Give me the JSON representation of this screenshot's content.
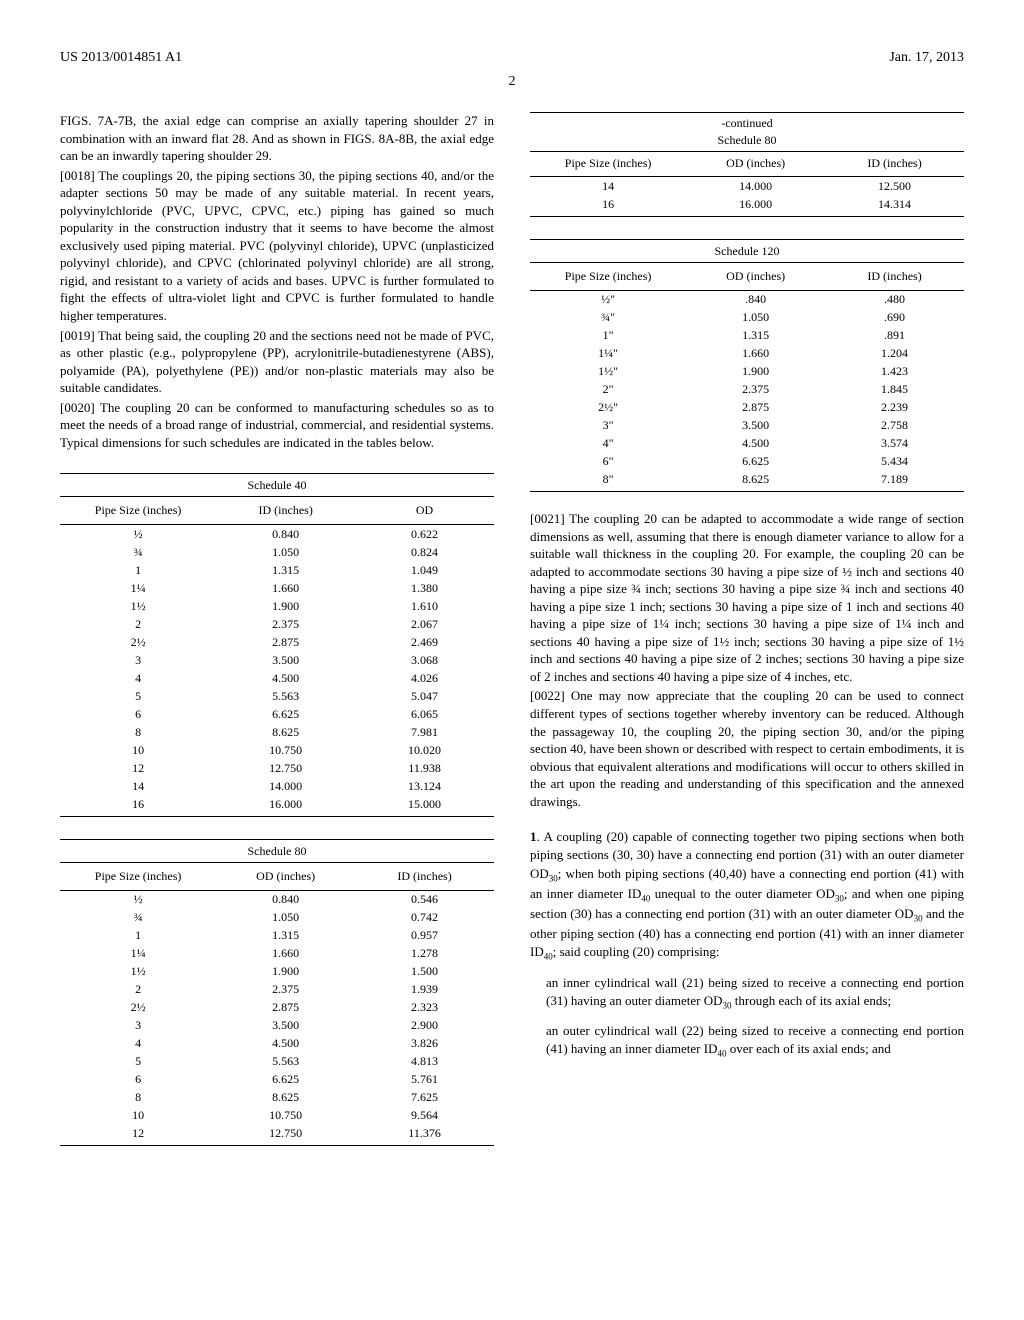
{
  "header": {
    "left": "US 2013/0014851 A1",
    "right": "Jan. 17, 2013"
  },
  "page_number": "2",
  "left_col": {
    "p_intro": "FIGS. 7A-7B, the axial edge can comprise an axially tapering shoulder 27 in combination with an inward flat 28. And as shown in FIGS. 8A-8B, the axial edge can be an inwardly tapering shoulder 29.",
    "p18_num": "[0018]",
    "p18": "   The couplings 20, the piping sections 30, the piping sections 40, and/or the adapter sections 50 may be made of any suitable material. In recent years, polyvinylchloride (PVC, UPVC, CPVC, etc.) piping has gained so much popularity in the construction industry that it seems to have become the almost exclusively used piping material. PVC (polyvinyl chloride), UPVC (unplasticized polyvinyl chloride), and CPVC (chlorinated polyvinyl chloride) are all strong, rigid, and resistant to a variety of acids and bases. UPVC is further formulated to fight the effects of ultra-violet light and CPVC is further formulated to handle higher temperatures.",
    "p19_num": "[0019]",
    "p19": "   That being said, the coupling 20 and the sections need not be made of PVC, as other plastic (e.g., polypropylene (PP), acrylonitrile-butadienestyrene (ABS), polyamide (PA), polyethylene (PE)) and/or non-plastic materials may also be suitable candidates.",
    "p20_num": "[0020]",
    "p20": "   The coupling 20 can be conformed to manufacturing schedules so as to meet the needs of a broad range of industrial, commercial, and residential systems. Typical dimensions for such schedules are indicated in the tables below.",
    "t40_title": "Schedule 40",
    "t40_h1": "Pipe Size (inches)",
    "t40_h2": "ID (inches)",
    "t40_h3": "OD",
    "t40_rows": [
      [
        "½",
        "0.840",
        "0.622"
      ],
      [
        "¾",
        "1.050",
        "0.824"
      ],
      [
        "1",
        "1.315",
        "1.049"
      ],
      [
        "1¼",
        "1.660",
        "1.380"
      ],
      [
        "1½",
        "1.900",
        "1.610"
      ],
      [
        "2",
        "2.375",
        "2.067"
      ],
      [
        "2½",
        "2.875",
        "2.469"
      ],
      [
        "3",
        "3.500",
        "3.068"
      ],
      [
        "4",
        "4.500",
        "4.026"
      ],
      [
        "5",
        "5.563",
        "5.047"
      ],
      [
        "6",
        "6.625",
        "6.065"
      ],
      [
        "8",
        "8.625",
        "7.981"
      ],
      [
        "10",
        "10.750",
        "10.020"
      ],
      [
        "12",
        "12.750",
        "11.938"
      ],
      [
        "14",
        "14.000",
        "13.124"
      ],
      [
        "16",
        "16.000",
        "15.000"
      ]
    ],
    "t80_title": "Schedule 80",
    "t80_h1": "Pipe Size (inches)",
    "t80_h2": "OD (inches)",
    "t80_h3": "ID (inches)",
    "t80_rows": [
      [
        "½",
        "0.840",
        "0.546"
      ],
      [
        "¾",
        "1.050",
        "0.742"
      ],
      [
        "1",
        "1.315",
        "0.957"
      ],
      [
        "1¼",
        "1.660",
        "1.278"
      ],
      [
        "1½",
        "1.900",
        "1.500"
      ],
      [
        "2",
        "2.375",
        "1.939"
      ],
      [
        "2½",
        "2.875",
        "2.323"
      ],
      [
        "3",
        "3.500",
        "2.900"
      ],
      [
        "4",
        "4.500",
        "3.826"
      ],
      [
        "5",
        "5.563",
        "4.813"
      ],
      [
        "6",
        "6.625",
        "5.761"
      ],
      [
        "8",
        "8.625",
        "7.625"
      ],
      [
        "10",
        "10.750",
        "9.564"
      ],
      [
        "12",
        "12.750",
        "11.376"
      ]
    ]
  },
  "right_col": {
    "cont_label": "-continued",
    "t80c_title": "Schedule 80",
    "t80c_h1": "Pipe Size (inches)",
    "t80c_h2": "OD (inches)",
    "t80c_h3": "ID (inches)",
    "t80c_rows": [
      [
        "14",
        "14.000",
        "12.500"
      ],
      [
        "16",
        "16.000",
        "14.314"
      ]
    ],
    "t120_title": "Schedule 120",
    "t120_h1": "Pipe Size (inches)",
    "t120_h2": "OD (inches)",
    "t120_h3": "ID (inches)",
    "t120_rows": [
      [
        "½\"",
        ".840",
        ".480"
      ],
      [
        "¾\"",
        "1.050",
        ".690"
      ],
      [
        "1\"",
        "1.315",
        ".891"
      ],
      [
        "1¼\"",
        "1.660",
        "1.204"
      ],
      [
        "1½\"",
        "1.900",
        "1.423"
      ],
      [
        "2\"",
        "2.375",
        "1.845"
      ],
      [
        "2½\"",
        "2.875",
        "2.239"
      ],
      [
        "3\"",
        "3.500",
        "2.758"
      ],
      [
        "4\"",
        "4.500",
        "3.574"
      ],
      [
        "6\"",
        "6.625",
        "5.434"
      ],
      [
        "8\"",
        "8.625",
        "7.189"
      ]
    ],
    "p21_num": "[0021]",
    "p21": "   The coupling 20 can be adapted to accommodate a wide range of section dimensions as well, assuming that there is enough diameter variance to allow for a suitable wall thickness in the coupling 20. For example, the coupling 20 can be adapted to accommodate sections 30 having a pipe size of ½ inch and sections 40 having a pipe size ¾ inch; sections 30 having a pipe size ¾ inch and sections 40 having a pipe size 1 inch; sections 30 having a pipe size of 1 inch and sections 40 having a pipe size of 1¼ inch; sections 30 having a pipe size of 1¼ inch and sections 40 having a pipe size of 1½ inch; sections 30 having a pipe size of 1½ inch and sections 40 having a pipe size of 2 inches; sections 30 having a pipe size of 2 inches and sections 40 having a pipe size of 4 inches, etc.",
    "p22_num": "[0022]",
    "p22": "   One may now appreciate that the coupling 20 can be used to connect different types of sections together whereby inventory can be reduced. Although the passageway 10, the coupling 20, the piping section 30, and/or the piping section 40, have been shown or described with respect to certain embodiments, it is obvious that equivalent alterations and modifications will occur to others skilled in the art upon the reading and understanding of this specification and the annexed drawings.",
    "claim1_pre": "1. A coupling (20) capable of connecting together two piping sections when both piping sections (30, 30) have a connecting end portion (31) with an outer diameter OD",
    "claim1_mid1": "; when both piping sections (40,40) have a connecting end portion (41) with an inner diameter ID",
    "claim1_mid2": " unequal to the outer diameter OD",
    "claim1_mid3": "; and when one piping section (30) has a connecting end portion (31) with an outer diameter OD",
    "claim1_mid4": " and the other piping section (40) has a connecting end portion (41) with an inner diameter ID",
    "claim1_end": "; said coupling (20) comprising:",
    "claim1a_pre": "an inner cylindrical wall (21) being sized to receive a connecting end portion (31) having an outer diameter OD",
    "claim1a_end": " through each of its axial ends;",
    "claim1b_pre": "an outer cylindrical wall (22) being sized to receive a connecting end portion (41) having an inner diameter ID",
    "claim1b_end": " over each of its axial ends; and",
    "sub30": "30",
    "sub40": "40"
  }
}
